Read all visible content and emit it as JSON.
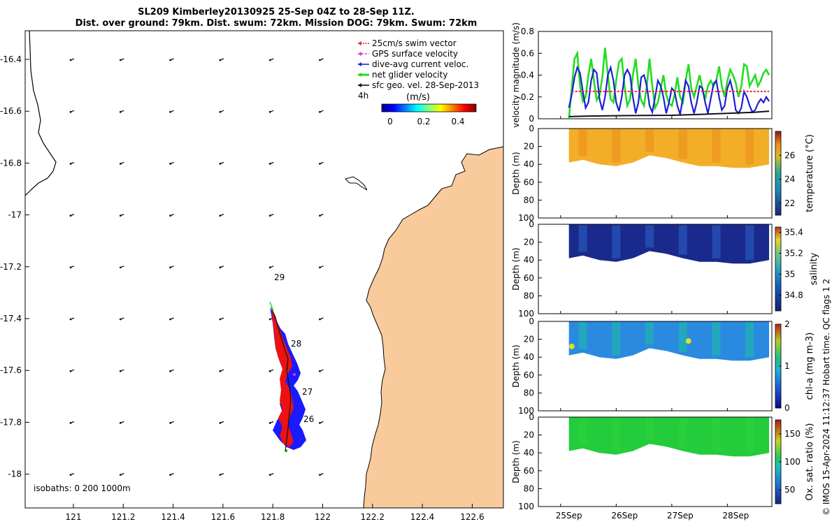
{
  "title": {
    "line1": "SL209 Kimberley20130925 25-Sep 04Z to 28-Sep 11Z.",
    "line2": "Dist. over ground: 79km. Dist. swum: 72km. Mission DOG: 79km. Swum: 72km"
  },
  "credit": "© IMOS 15-Apr-2024 11:12:37 Hobart time. QC flags 1  2",
  "colors": {
    "land": "#f9cb9c",
    "swim": "#e8243a",
    "gps": "#d63bd6",
    "diveavg": "#1f1fd6",
    "glider": "#22dd22",
    "geo": "#111111",
    "track_red": "#ee1111",
    "track_blue": "#1a1aff"
  },
  "map": {
    "legend": [
      {
        "key": "swim",
        "label": "25cm/s swim vector"
      },
      {
        "key": "gps",
        "label": "GPS surface velocity"
      },
      {
        "key": "diveavg",
        "label": "dive-avg current veloc."
      },
      {
        "key": "glider",
        "label": "net glider velocity"
      },
      {
        "key": "geo",
        "label": "sfc geo. vel. 28-Sep-2013"
      }
    ],
    "time_label": "4h",
    "colorbar_label": "(m/s)",
    "colorbar_ticks": [
      "0",
      "0.2",
      "0.4"
    ],
    "isobaths_label": "isobaths: 0   200  1000m",
    "x_ticks": [
      "121",
      "121.2",
      "121.4",
      "121.6",
      "121.8",
      "122",
      "122.2",
      "122.4",
      "122.6"
    ],
    "y_ticks": [
      "-16.4",
      "-16.6",
      "-16.8",
      "-17",
      "-17.2",
      "-17.4",
      "-17.6",
      "-17.8",
      "-18"
    ],
    "day_labels": [
      "29",
      "28",
      "27",
      "26"
    ]
  },
  "chart_data": [
    {
      "type": "line",
      "ylabel": "velocity magnitude (m/s)",
      "ylim": [
        0,
        0.8
      ],
      "yticks": [
        "0",
        "0.2",
        "0.4",
        "0.6",
        "0.8"
      ],
      "x_range_days": [
        24.6,
        28.8
      ],
      "series": [
        {
          "key": "glider",
          "x": [
            25.15,
            25.2,
            25.25,
            25.3,
            25.35,
            25.4,
            25.45,
            25.5,
            25.55,
            25.6,
            25.65,
            25.7,
            25.75,
            25.8,
            25.85,
            25.9,
            25.95,
            26.0,
            26.05,
            26.1,
            26.15,
            26.2,
            26.25,
            26.3,
            26.35,
            26.4,
            26.45,
            26.5,
            26.55,
            26.6,
            26.65,
            26.7,
            26.75,
            26.8,
            26.85,
            26.9,
            26.95,
            27.0,
            27.05,
            27.1,
            27.15,
            27.2,
            27.25,
            27.3,
            27.35,
            27.4,
            27.45,
            27.5,
            27.55,
            27.6,
            27.65,
            27.7,
            27.75,
            27.8,
            27.85,
            27.9,
            27.95,
            28.0,
            28.05,
            28.1,
            28.15,
            28.2,
            28.25,
            28.3,
            28.35,
            28.4,
            28.45,
            28.5,
            28.55,
            28.6,
            28.65,
            28.7,
            28.75
          ],
          "y": [
            0.0,
            0.28,
            0.55,
            0.6,
            0.3,
            0.16,
            0.2,
            0.4,
            0.55,
            0.35,
            0.17,
            0.22,
            0.38,
            0.65,
            0.4,
            0.18,
            0.15,
            0.35,
            0.52,
            0.55,
            0.3,
            0.12,
            0.18,
            0.4,
            0.55,
            0.3,
            0.17,
            0.12,
            0.3,
            0.55,
            0.3,
            0.1,
            0.15,
            0.28,
            0.4,
            0.22,
            0.14,
            0.12,
            0.22,
            0.38,
            0.2,
            0.15,
            0.35,
            0.5,
            0.28,
            0.2,
            0.3,
            0.4,
            0.28,
            0.18,
            0.3,
            0.35,
            0.3,
            0.35,
            0.48,
            0.3,
            0.2,
            0.35,
            0.45,
            0.4,
            0.33,
            0.2,
            0.3,
            0.5,
            0.48,
            0.3,
            0.35,
            0.4,
            0.3,
            0.35,
            0.42,
            0.45,
            0.4
          ]
        },
        {
          "key": "diveavg",
          "x": [
            25.15,
            25.2,
            25.25,
            25.3,
            25.35,
            25.4,
            25.45,
            25.5,
            25.55,
            25.6,
            25.65,
            25.7,
            25.75,
            25.8,
            25.85,
            25.9,
            25.95,
            26.0,
            26.05,
            26.1,
            26.15,
            26.2,
            26.25,
            26.3,
            26.35,
            26.4,
            26.45,
            26.5,
            26.55,
            26.6,
            26.65,
            26.7,
            26.75,
            26.8,
            26.85,
            26.9,
            26.95,
            27.0,
            27.05,
            27.1,
            27.15,
            27.2,
            27.25,
            27.3,
            27.35,
            27.4,
            27.45,
            27.5,
            27.55,
            27.6,
            27.65,
            27.7,
            27.75,
            27.8,
            27.85,
            27.9,
            27.95,
            28.0,
            28.05,
            28.1,
            28.15,
            28.2,
            28.25,
            28.3,
            28.35,
            28.4,
            28.45,
            28.5,
            28.55,
            28.6,
            28.65,
            28.7,
            28.75
          ],
          "y": [
            0.1,
            0.22,
            0.38,
            0.47,
            0.42,
            0.25,
            0.1,
            0.15,
            0.35,
            0.45,
            0.42,
            0.18,
            0.08,
            0.2,
            0.4,
            0.47,
            0.35,
            0.15,
            0.07,
            0.2,
            0.4,
            0.45,
            0.4,
            0.2,
            0.05,
            0.15,
            0.38,
            0.4,
            0.3,
            0.12,
            0.06,
            0.2,
            0.35,
            0.3,
            0.2,
            0.05,
            0.15,
            0.28,
            0.25,
            0.12,
            0.04,
            0.2,
            0.35,
            0.3,
            0.15,
            0.05,
            0.15,
            0.3,
            0.28,
            0.15,
            0.05,
            0.18,
            0.32,
            0.35,
            0.2,
            0.08,
            0.12,
            0.28,
            0.35,
            0.25,
            0.08,
            0.05,
            0.1,
            0.25,
            0.2,
            0.12,
            0.06,
            0.08,
            0.14,
            0.18,
            0.15,
            0.2,
            0.16
          ]
        },
        {
          "key": "swim",
          "x": [
            25.2,
            28.75
          ],
          "y": [
            0.25,
            0.25
          ]
        },
        {
          "key": "geo",
          "x": [
            25.15,
            25.5,
            26.0,
            26.5,
            27.0,
            27.5,
            28.0,
            28.5,
            28.75
          ],
          "y": [
            0.02,
            0.025,
            0.028,
            0.03,
            0.032,
            0.04,
            0.05,
            0.06,
            0.07
          ]
        }
      ]
    },
    {
      "type": "heatmap",
      "variable": "temperature",
      "colorbar_label": "temperature (°C)",
      "clim": [
        21,
        28
      ],
      "colorbar_ticks": [
        "22",
        "24",
        "26"
      ],
      "ylabel": "Depth (m)",
      "ylim": [
        0,
        100
      ],
      "yticks": [
        "0",
        "20",
        "40",
        "60",
        "80",
        "100"
      ],
      "x_range_days": [
        24.6,
        28.8
      ],
      "profile_days": [
        25.15,
        25.4,
        25.7,
        26.0,
        26.3,
        26.6,
        26.9,
        27.2,
        27.5,
        27.8,
        28.1,
        28.4,
        28.75
      ],
      "max_depth_m": [
        38,
        35,
        40,
        42,
        38,
        30,
        33,
        38,
        42,
        42,
        44,
        44,
        40
      ],
      "value_range": [
        25.8,
        27.2
      ]
    },
    {
      "type": "heatmap",
      "variable": "salinity",
      "colorbar_label": "salinity",
      "clim": [
        34.65,
        35.45
      ],
      "colorbar_ticks": [
        "34.8",
        "35",
        "35.2",
        "35.4"
      ],
      "ylabel": "Depth (m)",
      "ylim": [
        0,
        100
      ],
      "yticks": [
        "0",
        "20",
        "40",
        "60",
        "80",
        "100"
      ],
      "x_range_days": [
        24.6,
        28.8
      ],
      "profile_days": [
        25.15,
        25.4,
        25.7,
        26.0,
        26.3,
        26.6,
        26.9,
        27.2,
        27.5,
        27.8,
        28.1,
        28.4,
        28.75
      ],
      "max_depth_m": [
        38,
        35,
        40,
        42,
        38,
        30,
        33,
        38,
        42,
        42,
        44,
        44,
        40
      ],
      "value_range": [
        34.65,
        34.85
      ]
    },
    {
      "type": "heatmap",
      "variable": "chl-a",
      "colorbar_label": "chl-a (mg m-3)",
      "clim": [
        0,
        2
      ],
      "colorbar_ticks": [
        "0",
        "1",
        "2"
      ],
      "ylabel": "Depth (m)",
      "ylim": [
        0,
        100
      ],
      "yticks": [
        "0",
        "20",
        "40",
        "60",
        "80",
        "100"
      ],
      "x_range_days": [
        24.6,
        28.8
      ],
      "profile_days": [
        25.15,
        25.4,
        25.7,
        26.0,
        26.3,
        26.6,
        26.9,
        27.2,
        27.5,
        27.8,
        28.1,
        28.4,
        28.75
      ],
      "max_depth_m": [
        38,
        35,
        40,
        42,
        38,
        30,
        33,
        38,
        42,
        42,
        44,
        44,
        40
      ],
      "value_range": [
        0.3,
        1.3
      ]
    },
    {
      "type": "heatmap",
      "variable": "oxygen saturation",
      "colorbar_label": "Ox. sat. ratio (%)",
      "clim": [
        25,
        175
      ],
      "colorbar_ticks": [
        "50",
        "100",
        "150"
      ],
      "ylabel": "Depth (m)",
      "ylim": [
        0,
        100
      ],
      "yticks": [
        "0",
        "20",
        "40",
        "60",
        "80",
        "100"
      ],
      "xticks": [
        "25Sep",
        "26Sep",
        "27Sep",
        "28Sep"
      ],
      "x_range_days": [
        24.6,
        28.8
      ],
      "profile_days": [
        25.15,
        25.4,
        25.7,
        26.0,
        26.3,
        26.6,
        26.9,
        27.2,
        27.5,
        27.8,
        28.1,
        28.4,
        28.75
      ],
      "max_depth_m": [
        38,
        35,
        40,
        42,
        38,
        30,
        33,
        38,
        42,
        42,
        44,
        44,
        40
      ],
      "value_range": [
        100,
        110
      ]
    }
  ]
}
